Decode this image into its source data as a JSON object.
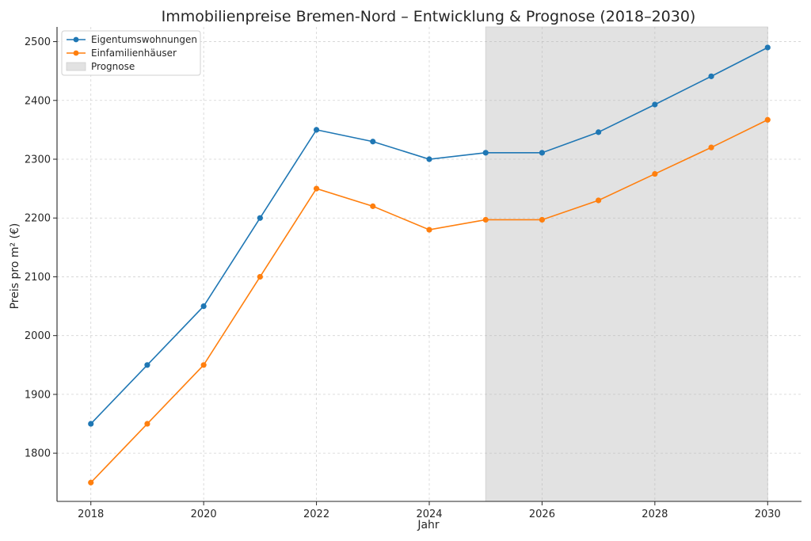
{
  "chart_data": {
    "type": "line",
    "title": "Immobilienpreise Bremen-Nord – Entwicklung & Prognose (2018–2030)",
    "xlabel": "Jahr",
    "ylabel": "Preis pro m² (€)",
    "x": [
      2018,
      2019,
      2020,
      2021,
      2022,
      2023,
      2024,
      2025,
      2026,
      2027,
      2028,
      2029,
      2030
    ],
    "xlim": [
      2017.4,
      2030.6
    ],
    "ylim": [
      1718,
      2525
    ],
    "xticks": [
      2018,
      2020,
      2022,
      2024,
      2026,
      2028,
      2030
    ],
    "yticks": [
      1800,
      1900,
      2000,
      2100,
      2200,
      2300,
      2400,
      2500
    ],
    "grid": true,
    "legend_position": "top-left",
    "series": [
      {
        "name": "Eigentumswohnungen",
        "color": "#1f77b4",
        "values": [
          1850,
          1950,
          2050,
          2200,
          2350,
          2330,
          2300,
          2311,
          2311,
          2346,
          2393,
          2441,
          2490
        ]
      },
      {
        "name": "Einfamilienhäuser",
        "color": "#ff7f0e",
        "values": [
          1750,
          1850,
          1950,
          2100,
          2250,
          2220,
          2180,
          2197,
          2197,
          2230,
          2275,
          2320,
          2367
        ]
      }
    ],
    "shaded_region": {
      "name": "Prognose",
      "x_start": 2025,
      "x_end": 2030,
      "color": "#e2e2e2"
    }
  }
}
